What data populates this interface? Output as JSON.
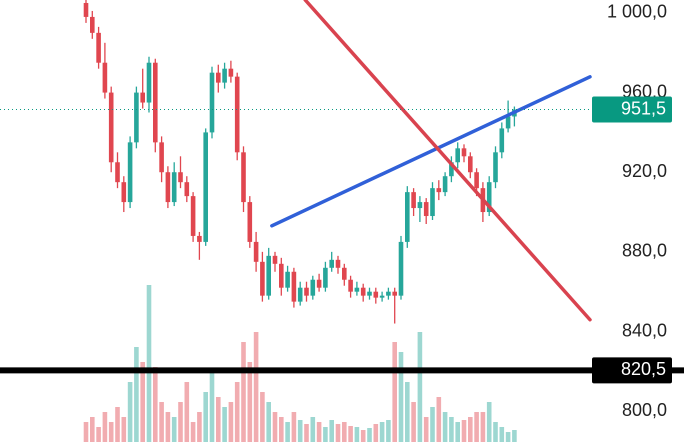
{
  "chart_data": {
    "type": "candlestick",
    "ylim": [
      784.5,
      1006.5
    ],
    "yticks": [
      {
        "value": 1000,
        "label": "1 000,0"
      },
      {
        "value": 960,
        "label": "960,0"
      },
      {
        "value": 920,
        "label": "920,0"
      },
      {
        "value": 880,
        "label": "880,0"
      },
      {
        "value": 840,
        "label": "840,0"
      },
      {
        "value": 800,
        "label": "800,0"
      }
    ],
    "up_color": "#26a69a",
    "down_color": "#e0464f",
    "open": [
      1005,
      998,
      990,
      975,
      960,
      925,
      915,
      905,
      935,
      960,
      955,
      975,
      935,
      920,
      905,
      920,
      915,
      908,
      888,
      885,
      940,
      970,
      965,
      972,
      968,
      930,
      905,
      885,
      875,
      858,
      878,
      874,
      862,
      870,
      855,
      862,
      858,
      866,
      862,
      872,
      876,
      872,
      866,
      860,
      862,
      858,
      860,
      857,
      858,
      860,
      858,
      885,
      910,
      902,
      905,
      898,
      912,
      910,
      918,
      925,
      932,
      928,
      920,
      912,
      900,
      915,
      930,
      942,
      948
    ],
    "high": [
      1007,
      1001,
      993,
      985,
      963,
      930,
      918,
      938,
      963,
      972,
      978,
      977,
      938,
      923,
      925,
      928,
      918,
      910,
      890,
      942,
      973,
      974,
      975,
      976,
      970,
      933,
      908,
      890,
      880,
      882,
      880,
      877,
      873,
      872,
      865,
      865,
      868,
      869,
      875,
      880,
      878,
      874,
      868,
      865,
      864,
      862,
      862,
      860,
      862,
      862,
      888,
      913,
      912,
      908,
      907,
      915,
      916,
      920,
      928,
      935,
      934,
      930,
      922,
      915,
      918,
      933,
      945,
      956,
      953
    ],
    "low": [
      995,
      987,
      972,
      957,
      920,
      912,
      900,
      902,
      932,
      952,
      950,
      930,
      915,
      902,
      903,
      912,
      905,
      885,
      876,
      883,
      937,
      960,
      962,
      965,
      926,
      900,
      882,
      870,
      855,
      856,
      870,
      858,
      860,
      852,
      853,
      855,
      856,
      860,
      860,
      870,
      869,
      863,
      857,
      858,
      855,
      856,
      854,
      855,
      856,
      844,
      856,
      882,
      898,
      895,
      894,
      896,
      906,
      908,
      915,
      922,
      925,
      917,
      908,
      895,
      898,
      912,
      927,
      940,
      943
    ],
    "close": [
      998,
      990,
      975,
      960,
      925,
      915,
      905,
      935,
      960,
      955,
      975,
      935,
      920,
      905,
      920,
      915,
      908,
      888,
      885,
      940,
      970,
      965,
      972,
      968,
      930,
      905,
      885,
      875,
      858,
      878,
      874,
      862,
      870,
      855,
      862,
      858,
      866,
      862,
      872,
      876,
      872,
      866,
      860,
      862,
      858,
      860,
      857,
      858,
      860,
      858,
      885,
      910,
      902,
      905,
      898,
      912,
      910,
      918,
      925,
      932,
      928,
      920,
      912,
      900,
      915,
      930,
      942,
      948,
      951.5
    ],
    "volume": [
      20,
      25,
      15,
      30,
      20,
      35,
      25,
      60,
      95,
      80,
      157,
      75,
      40,
      30,
      25,
      40,
      60,
      20,
      30,
      50,
      70,
      45,
      35,
      40,
      60,
      100,
      80,
      110,
      50,
      40,
      30,
      25,
      20,
      30,
      22,
      18,
      25,
      20,
      15,
      22,
      18,
      20,
      16,
      15,
      12,
      14,
      18,
      20,
      22,
      100,
      90,
      60,
      40,
      110,
      25,
      35,
      45,
      30,
      25,
      20,
      22,
      25,
      30,
      30,
      40,
      20,
      15,
      10,
      12
    ],
    "volume_lim": [
      0,
      160
    ],
    "trend_lines": [
      {
        "color": "#3060d8",
        "x": [
          29.5,
          80
        ],
        "y": [
          893.1,
          967.9
        ]
      },
      {
        "color": "#d9434f",
        "x": [
          34.8,
          80
        ],
        "y": [
          1006.5,
          845.9
        ]
      }
    ],
    "price_lines": [
      {
        "value": 951.5,
        "label": "951,5",
        "color": "#089981",
        "style": "dotted"
      },
      {
        "value": 820.5,
        "label": "820,5",
        "color": "#000000",
        "style": "solid"
      }
    ]
  }
}
